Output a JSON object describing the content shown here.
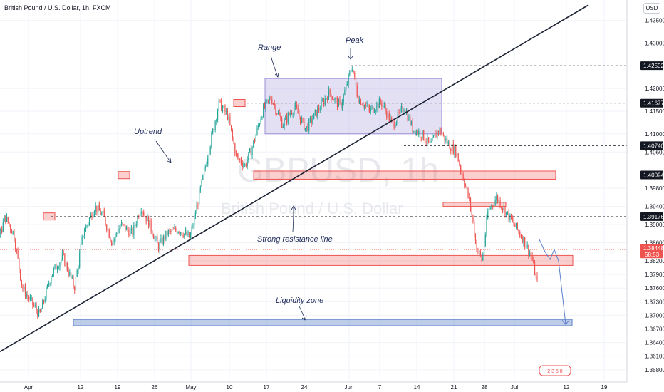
{
  "header": {
    "title": "British Pound / U.S. Dollar, 1h, FXCM",
    "currency": "USD"
  },
  "watermark": {
    "symbol": "GBPUSD, 1h",
    "name": "British Pound / U.S. Dollar"
  },
  "colors": {
    "up": "#26a69a",
    "down": "#ef5350",
    "resistance_zone": "#ef5350",
    "liquidity_zone": "#5b7fc7",
    "range_zone": "#9c8fd6",
    "trendline": "#1b2233"
  },
  "chart_data": {
    "type": "candlestick",
    "symbol": "GBPUSD",
    "timeframe": "1h",
    "ylim": [
      1.3575,
      1.4384
    ],
    "y_ticks": [
      "1.43500",
      "1.43000",
      "1.42000",
      "1.41500",
      "1.41000",
      "1.40600",
      "1.39800",
      "1.39400",
      "1.39000",
      "1.38600",
      "1.38200",
      "1.37900",
      "1.37600",
      "1.37300",
      "1.37000",
      "1.36700",
      "1.36400",
      "1.36100",
      "1.35800"
    ],
    "highlighted_levels": [
      {
        "label": "1.42502",
        "value": 1.42502
      },
      {
        "label": "1.41677",
        "value": 1.41677
      },
      {
        "label": "1.40740",
        "value": 1.4074
      },
      {
        "label": "1.40094",
        "value": 1.40094
      },
      {
        "label": "1.39176",
        "value": 1.39176
      }
    ],
    "current_price": {
      "label": "1.38448",
      "value": 1.38448,
      "countdown": "58:53"
    },
    "x_ticks": [
      "Apr",
      "12",
      "19",
      "26",
      "May",
      "10",
      "17",
      "24",
      "Jun",
      "7",
      "14",
      "21",
      "28",
      "Jul",
      "12",
      "19"
    ],
    "price_path": [
      [
        0,
        1.381
      ],
      [
        0.02,
        1.379
      ],
      [
        0.045,
        1.376
      ],
      [
        0.07,
        1.387
      ],
      [
        0.08,
        1.3918
      ],
      [
        0.095,
        1.388
      ],
      [
        0.11,
        1.376
      ],
      [
        0.125,
        1.373
      ],
      [
        0.14,
        1.37
      ],
      [
        0.16,
        1.379
      ],
      [
        0.18,
        1.383
      ],
      [
        0.2,
        1.376
      ],
      [
        0.215,
        1.388
      ],
      [
        0.235,
        1.394
      ],
      [
        0.25,
        1.392
      ],
      [
        0.265,
        1.386
      ],
      [
        0.28,
        1.39
      ],
      [
        0.3,
        1.388
      ],
      [
        0.315,
        1.394
      ],
      [
        0.33,
        1.39
      ],
      [
        0.345,
        1.385
      ],
      [
        0.36,
        1.388
      ],
      [
        0.38,
        1.389
      ],
      [
        0.4,
        1.387
      ],
      [
        0.42,
        1.399
      ],
      [
        0.435,
        1.408
      ],
      [
        0.45,
        1.4168
      ],
      [
        0.465,
        1.414
      ],
      [
        0.48,
        1.405
      ],
      [
        0.495,
        1.403
      ],
      [
        0.51,
        1.408
      ],
      [
        0.525,
        1.415
      ],
      [
        0.54,
        1.418
      ],
      [
        0.56,
        1.412
      ],
      [
        0.58,
        1.416
      ],
      [
        0.6,
        1.411
      ],
      [
        0.62,
        1.415
      ],
      [
        0.64,
        1.419
      ],
      [
        0.66,
        1.416
      ],
      [
        0.68,
        1.425
      ],
      [
        0.69,
        1.418
      ],
      [
        0.71,
        1.415
      ],
      [
        0.73,
        1.417
      ],
      [
        0.75,
        1.412
      ],
      [
        0.77,
        1.416
      ],
      [
        0.785,
        1.411
      ],
      [
        0.8,
        1.41
      ],
      [
        0.815,
        1.4074
      ],
      [
        0.83,
        1.411
      ],
      [
        0.845,
        1.408
      ],
      [
        0.86,
        1.406
      ],
      [
        0.875,
        1.399
      ],
      [
        0.885,
        1.394
      ],
      [
        0.895,
        1.385
      ],
      [
        0.905,
        1.382
      ],
      [
        0.915,
        1.393
      ],
      [
        0.93,
        1.396
      ],
      [
        0.945,
        1.393
      ],
      [
        0.96,
        1.39
      ],
      [
        0.975,
        1.387
      ],
      [
        0.99,
        1.383
      ],
      [
        1.0,
        1.377
      ]
    ],
    "annotations": [
      "Range",
      "Peak",
      "Uptrend",
      "Strong resistance line",
      "Liquidity zone"
    ],
    "zones": [
      {
        "kind": "range",
        "label": "Range"
      },
      {
        "kind": "resistance",
        "label": "Strong resistance line"
      },
      {
        "kind": "liquidity",
        "label": "Liquidity zone"
      }
    ],
    "legend": "none",
    "grid": true
  }
}
